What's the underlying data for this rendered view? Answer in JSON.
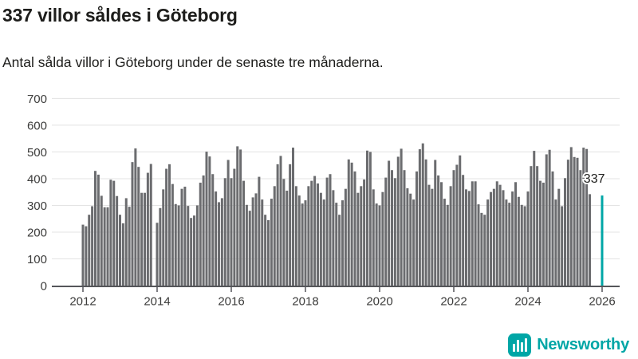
{
  "header": {
    "title": "337 villor såldes i Göteborg",
    "subtitle": "Antal sålda villor i Göteborg under de senaste tre månaderna."
  },
  "footer": {
    "brand": "Newsworthy",
    "logo_icon": "bar-chart-icon"
  },
  "colors": {
    "bar": "#6B6C6F",
    "highlight": "#00A6A6",
    "grid": "#E3E3E3",
    "axis": "#55565A",
    "text": "#1D1D1B",
    "tick_text": "#3C3C3B",
    "background": "#FFFFFF"
  },
  "chart_data": {
    "type": "bar",
    "title": "337 villor såldes i Göteborg",
    "subtitle": "Antal sålda villor i Göteborg under de senaste tre månaderna.",
    "x_monthly_from": "2012-01",
    "x_monthly_to": "2026-01",
    "x_tick_labels": [
      "2012",
      "2014",
      "2016",
      "2018",
      "2020",
      "2022",
      "2024",
      "2026"
    ],
    "y_ticks": [
      0,
      100,
      200,
      300,
      400,
      500,
      600,
      700
    ],
    "ylim": [
      0,
      700
    ],
    "grid": "horizontal",
    "legend": "none",
    "series": [
      {
        "name": "Antal sålda villor i Göteborg under de senaste tre månaderna",
        "values": [
          228,
          222,
          265,
          297,
          429,
          415,
          336,
          293,
          293,
          396,
          392,
          335,
          265,
          233,
          327,
          295,
          462,
          513,
          444,
          347,
          347,
          422,
          455,
          null,
          235,
          290,
          360,
          437,
          454,
          380,
          305,
          300,
          362,
          370,
          298,
          253,
          262,
          300,
          385,
          412,
          501,
          483,
          417,
          352,
          312,
          327,
          402,
          470,
          402,
          437,
          521,
          509,
          392,
          302,
          280,
          330,
          345,
          407,
          322,
          265,
          245,
          325,
          372,
          454,
          485,
          399,
          355,
          454,
          516,
          372,
          337,
          307,
          319,
          372,
          392,
          410,
          382,
          347,
          322,
          404,
          417,
          357,
          310,
          265,
          319,
          362,
          472,
          460,
          427,
          347,
          372,
          397,
          505,
          500,
          360,
          307,
          300,
          350,
          404,
          467,
          432,
          402,
          482,
          512,
          432,
          364,
          344,
          322,
          427,
          510,
          532,
          472,
          377,
          362,
          470,
          412,
          387,
          325,
          302,
          372,
          432,
          452,
          487,
          414,
          360,
          354,
          390,
          390,
          304,
          272,
          265,
          322,
          350,
          362,
          390,
          377,
          357,
          322,
          310,
          352,
          387,
          332,
          302,
          297,
          352,
          447,
          504,
          447,
          392,
          385,
          491,
          508,
          427,
          322,
          362,
          297,
          402,
          471,
          518,
          481,
          478,
          432,
          516,
          511,
          342,
          null,
          null,
          null,
          337
        ]
      }
    ],
    "highlight": {
      "index": 168,
      "value": 337,
      "label": "337"
    }
  }
}
